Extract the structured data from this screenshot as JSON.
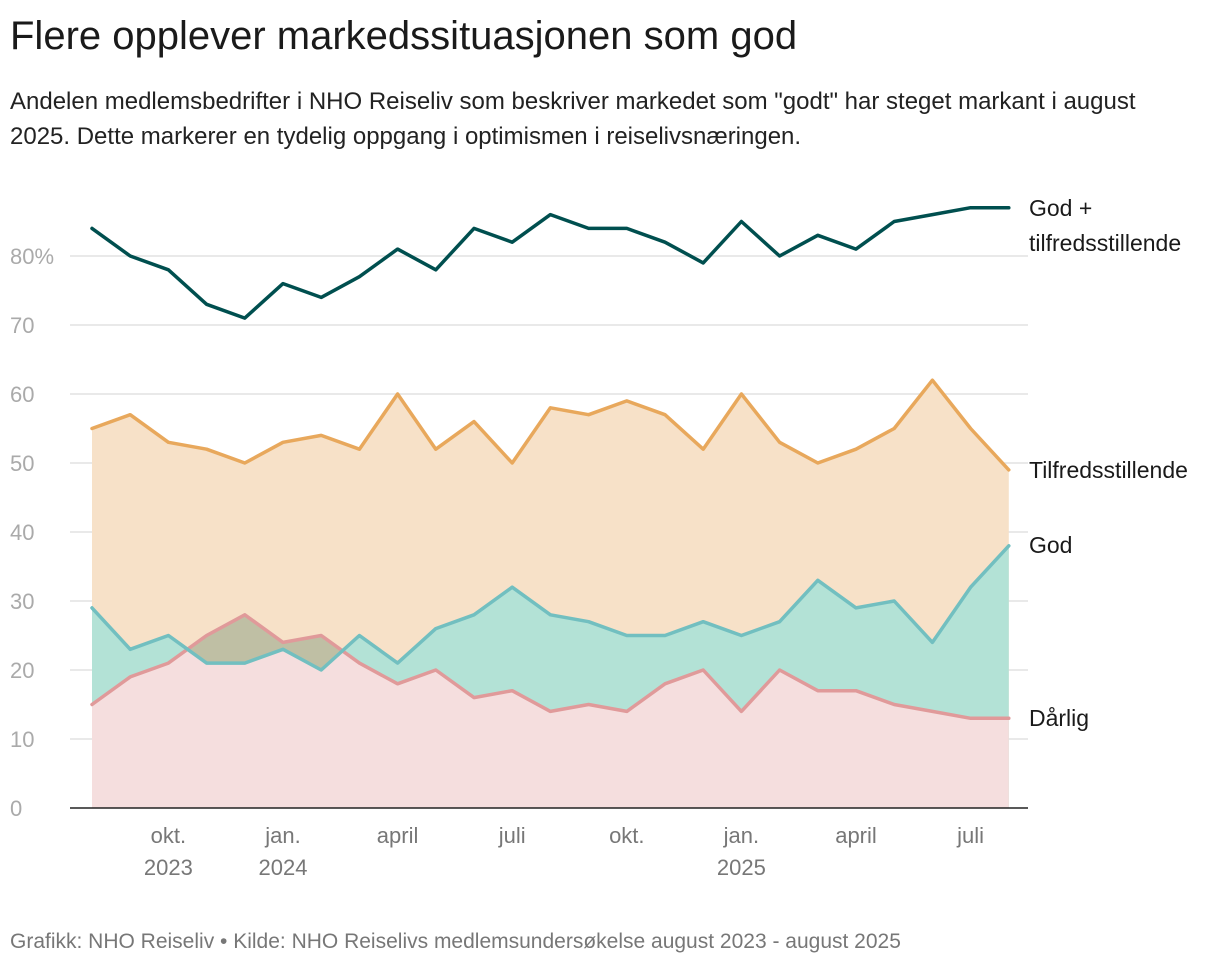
{
  "title": "Flere opplever markedssituasjonen som god",
  "subtitle": "Andelen medlemsbedrifter i NHO Reiseliv som beskriver markedet som \"godt\" har steget markant i august 2025. Dette markerer en tydelig oppgang i optimismen i reiselivsnæringen.",
  "footer": "Grafikk: NHO Reiseliv • Kilde: NHO Reiselivs medlemsundersøkelse august 2023 - august 2025",
  "colors": {
    "god_pluss": "#004f4f",
    "tilfredsstillende": "#e8a85c",
    "tilfredsstillende_fill": "#f7e1c8",
    "god": "#72bfc0",
    "god_fill": "#b3e2d6",
    "darlig": "#e09a9a",
    "darlig_fill": "#f5dede",
    "overlap_fill": "#bfbfa4",
    "grid": "#e2e2e2"
  },
  "chart_data": {
    "type": "line",
    "x": [
      "2023-08",
      "2023-09",
      "2023-10",
      "2023-11",
      "2023-12",
      "2024-01",
      "2024-02",
      "2024-03",
      "2024-04",
      "2024-05",
      "2024-06",
      "2024-07",
      "2024-08",
      "2024-09",
      "2024-10",
      "2024-11",
      "2024-12",
      "2025-01",
      "2025-02",
      "2025-03",
      "2025-04",
      "2025-05",
      "2025-06",
      "2025-07",
      "2025-08"
    ],
    "ylim": [
      0,
      90
    ],
    "yticks": [
      0,
      10,
      20,
      30,
      40,
      50,
      60,
      70,
      80
    ],
    "ytick_labels": [
      "0",
      "10",
      "20",
      "30",
      "40",
      "50",
      "60",
      "70",
      "80%"
    ],
    "xticks": [
      {
        "index": 2,
        "lines": [
          "okt.",
          "2023"
        ]
      },
      {
        "index": 5,
        "lines": [
          "jan.",
          "2024"
        ]
      },
      {
        "index": 8,
        "lines": [
          "april"
        ]
      },
      {
        "index": 11,
        "lines": [
          "juli"
        ]
      },
      {
        "index": 14,
        "lines": [
          "okt."
        ]
      },
      {
        "index": 17,
        "lines": [
          "jan.",
          "2025"
        ]
      },
      {
        "index": 20,
        "lines": [
          "april"
        ]
      },
      {
        "index": 23,
        "lines": [
          "juli"
        ]
      }
    ],
    "series": [
      {
        "key": "god_pluss",
        "name": "God + tilfredsstillende",
        "label_lines": [
          "God +",
          "tilfredsstillende"
        ],
        "values": [
          84,
          80,
          78,
          73,
          71,
          76,
          74,
          77,
          81,
          78,
          84,
          82,
          86,
          84,
          84,
          82,
          79,
          85,
          80,
          83,
          81,
          85,
          86,
          87,
          87
        ]
      },
      {
        "key": "tilfredsstillende",
        "name": "Tilfredsstillende",
        "label_lines": [
          "Tilfredsstillende"
        ],
        "area": true,
        "values": [
          55,
          57,
          53,
          52,
          50,
          53,
          54,
          52,
          60,
          52,
          56,
          50,
          58,
          57,
          59,
          57,
          52,
          60,
          53,
          50,
          52,
          55,
          62,
          55,
          49
        ]
      },
      {
        "key": "god",
        "name": "God",
        "label_lines": [
          "God"
        ],
        "area": true,
        "values": [
          29,
          23,
          25,
          21,
          21,
          23,
          20,
          25,
          21,
          26,
          28,
          32,
          28,
          27,
          25,
          25,
          27,
          25,
          27,
          33,
          29,
          30,
          24,
          32,
          38
        ]
      },
      {
        "key": "darlig",
        "name": "Dårlig",
        "label_lines": [
          "Dårlig"
        ],
        "area": true,
        "values": [
          15,
          19,
          21,
          25,
          28,
          24,
          25,
          21,
          18,
          20,
          16,
          17,
          14,
          15,
          14,
          18,
          20,
          14,
          20,
          17,
          17,
          15,
          14,
          13,
          13
        ]
      }
    ]
  }
}
